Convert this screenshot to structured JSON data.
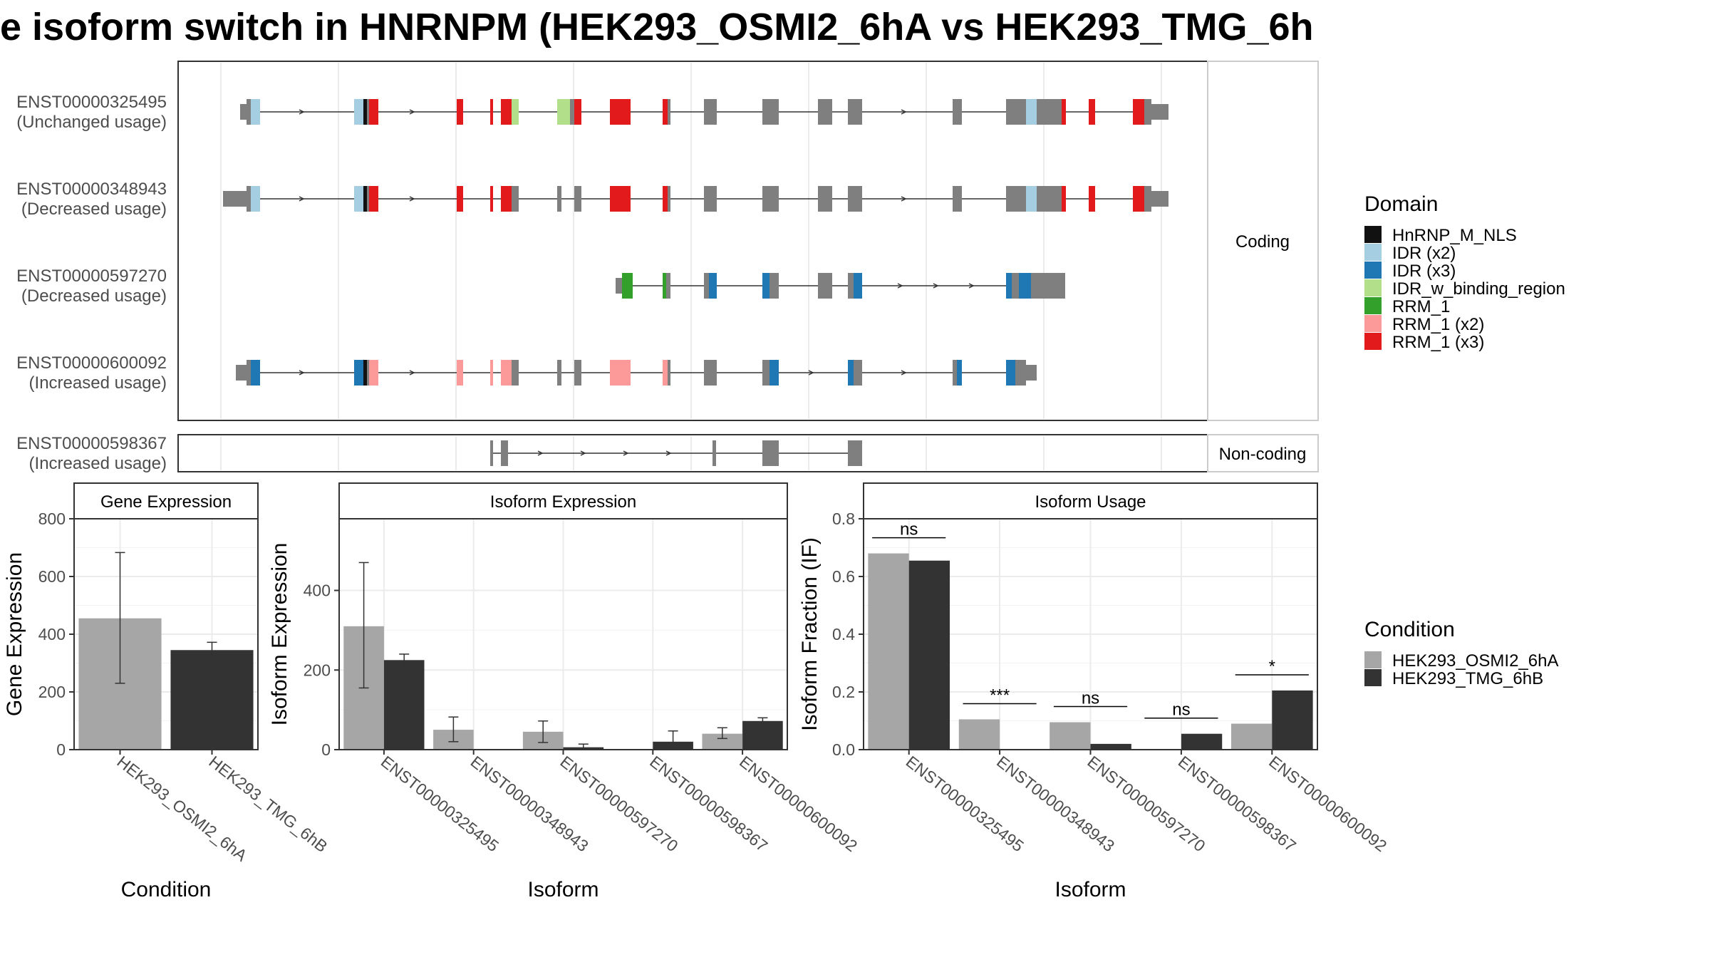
{
  "title": "e isoform switch in HNRNPM (HEK293_OSMI2_6hA vs HEK293_TMG_6h",
  "colors": {
    "exon": "#7f7f7f",
    "HnRNP_M_NLS": "#111111",
    "IDR (x2)": "#a6cee3",
    "IDR (x3)": "#1f78b4",
    "IDR_w_binding_region": "#b2df8a",
    "RRM_1": "#33a02c",
    "RRM_1 (x2)": "#fb9a99",
    "RRM_1 (x3)": "#e31a1c",
    "cond_a": "#a6a6a6",
    "cond_b": "#333333"
  },
  "isoforms": [
    {
      "id": "ENST00000325495",
      "usage": "(Unchanged usage)"
    },
    {
      "id": "ENST00000348943",
      "usage": "(Decreased usage)"
    },
    {
      "id": "ENST00000597270",
      "usage": "(Decreased usage)"
    },
    {
      "id": "ENST00000600092",
      "usage": "(Increased usage)"
    },
    {
      "id": "ENST00000598367",
      "usage": "(Increased usage)"
    }
  ],
  "strips": {
    "coding": "Coding",
    "noncoding": "Non-coding"
  },
  "legend_domain": {
    "title": "Domain",
    "items": [
      {
        "key": "HnRNP_M_NLS",
        "label": "HnRNP_M_NLS"
      },
      {
        "key": "IDR (x2)",
        "label": "IDR (x2)"
      },
      {
        "key": "IDR (x3)",
        "label": "IDR (x3)"
      },
      {
        "key": "IDR_w_binding_region",
        "label": "IDR_w_binding_region"
      },
      {
        "key": "RRM_1",
        "label": "RRM_1"
      },
      {
        "key": "RRM_1 (x2)",
        "label": "RRM_1 (x2)"
      },
      {
        "key": "RRM_1 (x3)",
        "label": "RRM_1 (x3)"
      }
    ]
  },
  "legend_condition": {
    "title": "Condition",
    "items": [
      {
        "key": "cond_a",
        "label": "HEK293_OSMI2_6hA"
      },
      {
        "key": "cond_b",
        "label": "HEK293_TMG_6hB"
      }
    ]
  },
  "chart_data": [
    {
      "type": "bar",
      "title": "Gene Expression",
      "xlabel": "Condition",
      "ylabel": "Gene Expression",
      "ylim": [
        0,
        800
      ],
      "yticks": [
        0,
        200,
        400,
        600,
        800
      ],
      "categories": [
        "HEK293_OSMI2_6hA",
        "HEK293_TMG_6hB"
      ],
      "values": [
        455,
        345
      ],
      "error": [
        [
          230,
          683
        ],
        [
          320,
          372
        ]
      ]
    },
    {
      "type": "bar",
      "title": "Isoform Expression",
      "xlabel": "Isoform",
      "ylabel": "Isoform Expression",
      "ylim": [
        0,
        580
      ],
      "yticks": [
        0,
        200,
        400
      ],
      "categories": [
        "ENST00000325495",
        "ENST00000348943",
        "ENST00000597270",
        "ENST00000598367",
        "ENST00000600092"
      ],
      "series": [
        {
          "name": "HEK293_OSMI2_6hA",
          "values": [
            310,
            50,
            45,
            0,
            40
          ],
          "error": [
            [
              155,
              470
            ],
            [
              20,
              82
            ],
            [
              18,
              72
            ],
            [
              0,
              0
            ],
            [
              28,
              55
            ]
          ]
        },
        {
          "name": "HEK293_TMG_6hB",
          "values": [
            225,
            0,
            6,
            20,
            72
          ],
          "error": [
            [
              207,
              240
            ],
            [
              0,
              0
            ],
            [
              0,
              14
            ],
            [
              0,
              47
            ],
            [
              64,
              80
            ]
          ]
        }
      ]
    },
    {
      "type": "bar",
      "title": "Isoform Usage",
      "xlabel": "Isoform",
      "ylabel": "Isoform Fraction (IF)",
      "ylim": [
        0,
        0.8
      ],
      "yticks": [
        0.0,
        0.2,
        0.4,
        0.6,
        0.8
      ],
      "categories": [
        "ENST00000325495",
        "ENST00000348943",
        "ENST00000597270",
        "ENST00000598367",
        "ENST00000600092"
      ],
      "series": [
        {
          "name": "HEK293_OSMI2_6hA",
          "values": [
            0.68,
            0.105,
            0.095,
            0.0,
            0.09
          ]
        },
        {
          "name": "HEK293_TMG_6hB",
          "values": [
            0.655,
            0.0,
            0.02,
            0.055,
            0.205
          ]
        }
      ],
      "significance": [
        "ns",
        "***",
        "ns",
        "ns",
        "*"
      ]
    }
  ]
}
